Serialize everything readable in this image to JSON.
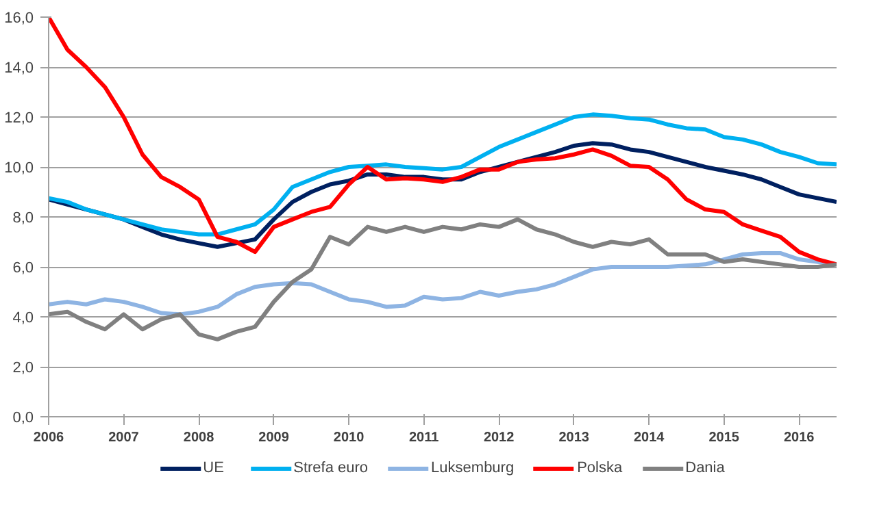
{
  "chart_data": {
    "type": "line",
    "x": [
      2006,
      2006.25,
      2006.5,
      2006.75,
      2007,
      2007.25,
      2007.5,
      2007.75,
      2008,
      2008.25,
      2008.5,
      2008.75,
      2009,
      2009.25,
      2009.5,
      2009.75,
      2010,
      2010.25,
      2010.5,
      2010.75,
      2011,
      2011.25,
      2011.5,
      2011.75,
      2012,
      2012.25,
      2012.5,
      2012.75,
      2013,
      2013.25,
      2013.5,
      2013.75,
      2014,
      2014.25,
      2014.5,
      2014.75,
      2015,
      2015.25,
      2015.5,
      2015.75,
      2016,
      2016.25,
      2016.5
    ],
    "series": [
      {
        "name": "UE",
        "color": "#002060",
        "values": [
          8.7,
          8.5,
          8.3,
          8.1,
          7.9,
          7.6,
          7.3,
          7.1,
          6.95,
          6.8,
          6.95,
          7.1,
          7.9,
          8.6,
          9.0,
          9.3,
          9.45,
          9.7,
          9.7,
          9.6,
          9.6,
          9.5,
          9.5,
          9.8,
          10.0,
          10.2,
          10.4,
          10.6,
          10.85,
          10.95,
          10.9,
          10.7,
          10.6,
          10.4,
          10.2,
          10.0,
          9.85,
          9.7,
          9.5,
          9.2,
          8.9,
          8.75,
          8.6
        ]
      },
      {
        "name": "Strefa euro",
        "color": "#00b0f0",
        "values": [
          8.75,
          8.6,
          8.3,
          8.1,
          7.9,
          7.7,
          7.5,
          7.4,
          7.3,
          7.3,
          7.5,
          7.7,
          8.3,
          9.2,
          9.5,
          9.8,
          10.0,
          10.05,
          10.1,
          10.0,
          9.95,
          9.9,
          10.0,
          10.4,
          10.8,
          11.1,
          11.4,
          11.7,
          12.0,
          12.1,
          12.05,
          11.95,
          11.9,
          11.7,
          11.55,
          11.5,
          11.2,
          11.1,
          10.9,
          10.6,
          10.4,
          10.15,
          10.1
        ]
      },
      {
        "name": "Luksemburg",
        "color": "#8eb4e3",
        "values": [
          4.5,
          4.6,
          4.5,
          4.7,
          4.6,
          4.4,
          4.15,
          4.1,
          4.2,
          4.4,
          4.9,
          5.2,
          5.3,
          5.35,
          5.3,
          5.0,
          4.7,
          4.6,
          4.4,
          4.45,
          4.8,
          4.7,
          4.75,
          5.0,
          4.85,
          5.0,
          5.1,
          5.3,
          5.6,
          5.9,
          6.0,
          6.0,
          6.0,
          6.0,
          6.05,
          6.1,
          6.3,
          6.5,
          6.55,
          6.55,
          6.3,
          6.2,
          6.1
        ]
      },
      {
        "name": "Polska",
        "color": "#ff0000",
        "values": [
          16.0,
          14.7,
          14.0,
          13.2,
          12.0,
          10.5,
          9.6,
          9.2,
          8.7,
          7.2,
          7.0,
          6.6,
          7.6,
          7.9,
          8.2,
          8.4,
          9.3,
          10.0,
          9.5,
          9.55,
          9.5,
          9.4,
          9.6,
          9.9,
          9.9,
          10.2,
          10.3,
          10.35,
          10.5,
          10.7,
          10.45,
          10.05,
          10.0,
          9.5,
          8.7,
          8.3,
          8.2,
          7.7,
          7.45,
          7.2,
          6.6,
          6.3,
          6.1
        ]
      },
      {
        "name": "Dania",
        "color": "#808080",
        "values": [
          4.1,
          4.2,
          3.8,
          3.5,
          4.1,
          3.5,
          3.9,
          4.1,
          3.3,
          3.1,
          3.4,
          3.6,
          4.6,
          5.4,
          5.9,
          7.2,
          6.9,
          7.6,
          7.4,
          7.6,
          7.4,
          7.6,
          7.5,
          7.7,
          7.6,
          7.9,
          7.5,
          7.3,
          7.0,
          6.8,
          7.0,
          6.9,
          7.1,
          6.5,
          6.5,
          6.5,
          6.2,
          6.3,
          6.2,
          6.1,
          6.0,
          6.0,
          6.1
        ]
      }
    ],
    "xlim": [
      2006,
      2016.5
    ],
    "xticks": [
      2006,
      2007,
      2008,
      2009,
      2010,
      2011,
      2012,
      2013,
      2014,
      2015,
      2016
    ],
    "ylim": [
      0,
      16
    ],
    "yticks": [
      {
        "value": 0,
        "label": "0,0"
      },
      {
        "value": 2,
        "label": "2,0"
      },
      {
        "value": 4,
        "label": "4,0"
      },
      {
        "value": 6,
        "label": "6,0"
      },
      {
        "value": 8,
        "label": "8,0"
      },
      {
        "value": 10,
        "label": "10,0"
      },
      {
        "value": 12,
        "label": "12,0"
      },
      {
        "value": 14,
        "label": "14,0"
      },
      {
        "value": 16,
        "label": "16,0"
      }
    ],
    "grid": "y",
    "legend": "bottom",
    "marker": "none",
    "line_style": "solid"
  }
}
